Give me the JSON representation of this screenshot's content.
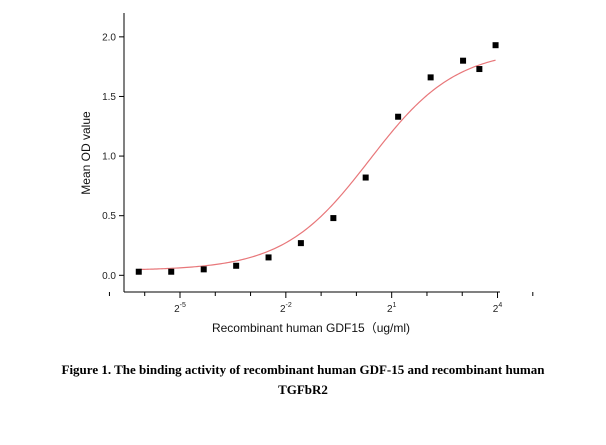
{
  "chart_data": {
    "type": "scatter",
    "ylabel": "Mean OD value",
    "xlabel": "Recombinant human GDF15（ug/ml)",
    "x_scale": "log2",
    "xlim": [
      0.0104,
      16.8
    ],
    "ylim": [
      -0.14,
      2.2
    ],
    "y_ticks": [
      "0.0",
      "0.5",
      "1.0",
      "1.5",
      "2.0"
    ],
    "x_tick_labels": [
      {
        "base": "2",
        "exp": "-5"
      },
      {
        "base": "2",
        "exp": "-2"
      },
      {
        "base": "2",
        "exp": "1"
      },
      {
        "base": "2",
        "exp": "4"
      }
    ],
    "x_minor_ticks": [
      -7,
      -6,
      -4,
      -3,
      -1,
      0,
      2,
      3,
      5
    ],
    "series": [
      {
        "points": [
          {
            "x": 0.0139,
            "y": 0.03
          },
          {
            "x": 0.0263,
            "y": 0.03
          },
          {
            "x": 0.0498,
            "y": 0.05
          },
          {
            "x": 0.0942,
            "y": 0.08
          },
          {
            "x": 0.178,
            "y": 0.15
          },
          {
            "x": 0.336,
            "y": 0.27
          },
          {
            "x": 0.636,
            "y": 0.48
          },
          {
            "x": 1.2,
            "y": 0.82
          },
          {
            "x": 2.27,
            "y": 1.33
          },
          {
            "x": 4.3,
            "y": 1.66
          },
          {
            "x": 8.13,
            "y": 1.8
          },
          {
            "x": 11.2,
            "y": 1.73
          },
          {
            "x": 15.4,
            "y": 1.93
          }
        ],
        "fit": {
          "bottom": 0.04,
          "top": 1.9,
          "ec50": 1.3,
          "hill": 1.18
        },
        "marker_color": "#000000",
        "fit_color": "#e8777a"
      }
    ]
  },
  "caption": {
    "line1": "Figure 1. The binding activity of recombinant human GDF-15 and recombinant human",
    "line2": "TGFbR2"
  }
}
